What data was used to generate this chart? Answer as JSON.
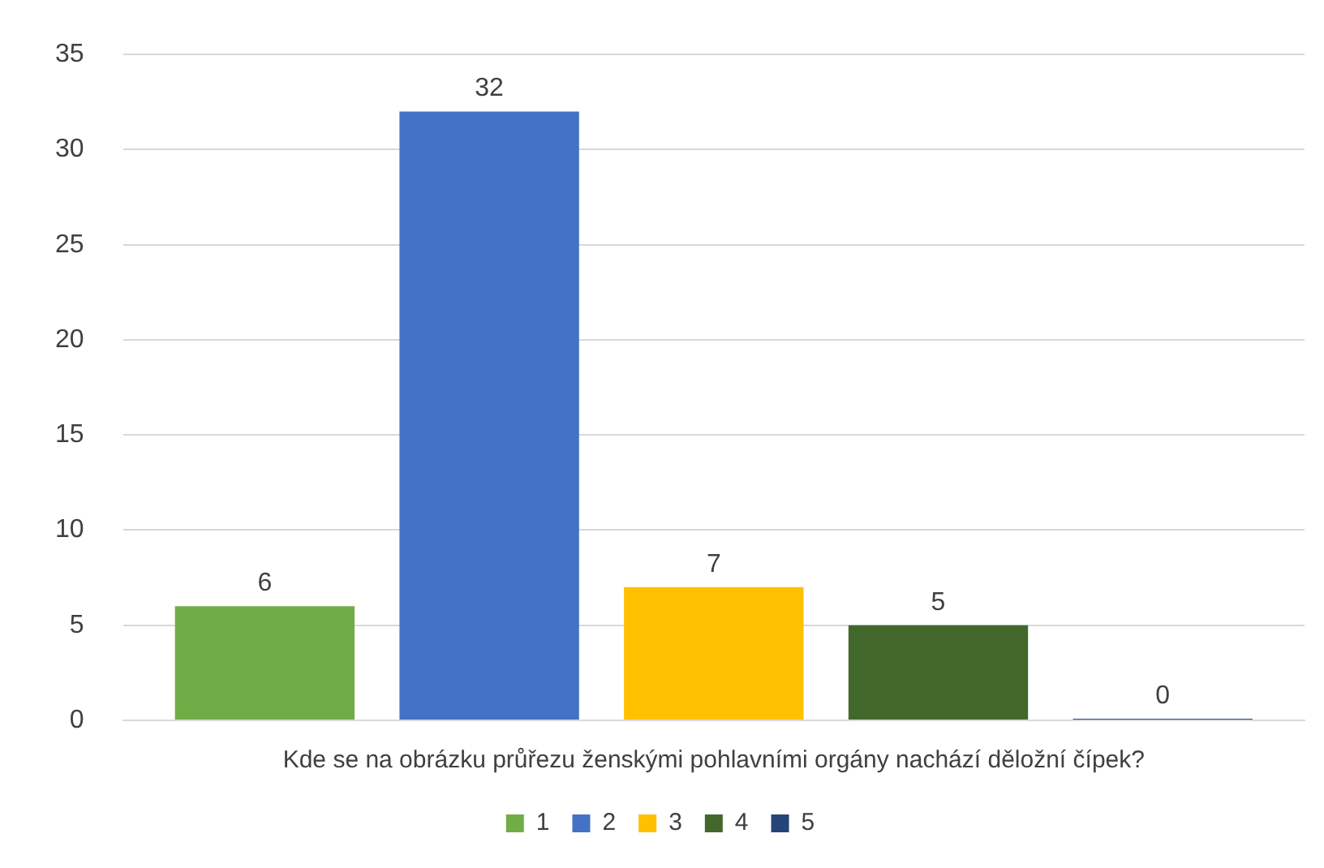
{
  "chart_data": {
    "type": "bar",
    "categories": [
      "Kde se na obrázku průřezu ženskými pohlavními orgány nachází děložní čípek?"
    ],
    "series": [
      {
        "name": "1",
        "color": "#70ad47",
        "values": [
          6
        ]
      },
      {
        "name": "2",
        "color": "#4472c4",
        "values": [
          32
        ]
      },
      {
        "name": "3",
        "color": "#ffc000",
        "values": [
          7
        ]
      },
      {
        "name": "4",
        "color": "#43682b",
        "values": [
          5
        ]
      },
      {
        "name": "5",
        "color": "#264478",
        "values": [
          0
        ]
      }
    ],
    "ylim": [
      0,
      35
    ],
    "yticks": [
      0,
      5,
      10,
      15,
      20,
      25,
      30,
      35
    ],
    "grid": "y",
    "legend": "bottom",
    "data_labels": true
  }
}
